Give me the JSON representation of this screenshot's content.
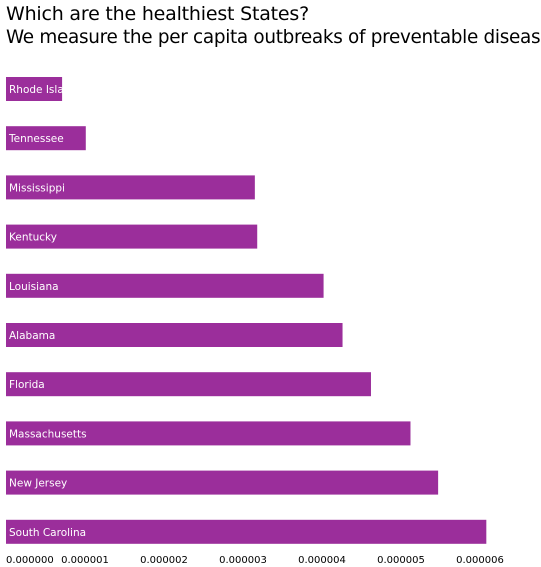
{
  "chart_data": {
    "type": "bar",
    "orientation": "horizontal",
    "title": "Which are the healthiest States?",
    "subtitle": "We measure the per capita outbreaks of preventable diseases",
    "xlabel": "",
    "ylabel": "",
    "xlim": [
      0,
      6e-06
    ],
    "x_ticks": [
      "0.000000",
      "0.000001",
      "0.000002",
      "0.000003",
      "0.000004",
      "0.000005",
      "0.000006"
    ],
    "grid": false,
    "bar_color": "#9b2e9b",
    "categories": [
      "Rhode Island",
      "Tennessee",
      "Mississippi",
      "Kentucky",
      "Louisiana",
      "Alabama",
      "Florida",
      "Massachusetts",
      "New Jersey",
      "South Carolina"
    ],
    "values": [
      7.1e-07,
      1.01e-06,
      3.15e-06,
      3.18e-06,
      4.02e-06,
      4.26e-06,
      4.62e-06,
      5.12e-06,
      5.47e-06,
      6.08e-06
    ]
  }
}
